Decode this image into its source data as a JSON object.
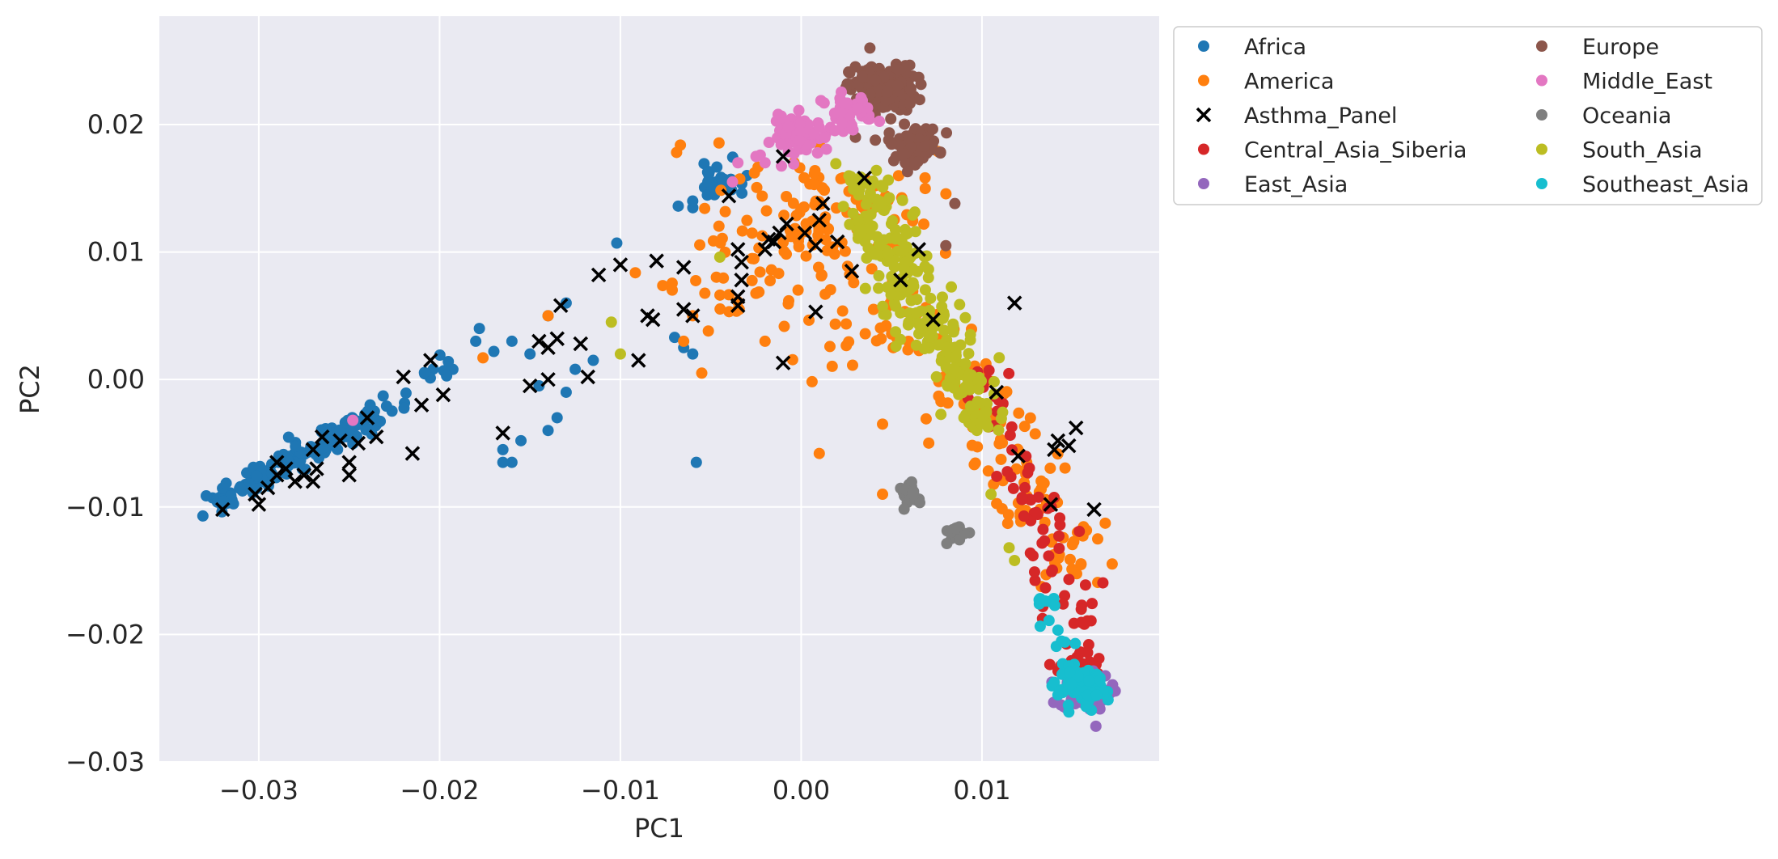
{
  "chart_data": {
    "type": "scatter",
    "title": "",
    "xlabel": "PC1",
    "ylabel": "PC2",
    "xlim": [
      -0.0355,
      0.0198
    ],
    "ylim": [
      -0.03,
      0.0285
    ],
    "xticks": [
      -0.03,
      -0.02,
      -0.01,
      0.0,
      0.01
    ],
    "xtick_labels": [
      "−0.03",
      "−0.02",
      "−0.01",
      "0.00",
      "0.01"
    ],
    "yticks": [
      0.02,
      0.01,
      0.0,
      -0.01,
      -0.02,
      -0.03
    ],
    "ytick_labels": [
      "0.02",
      "0.01",
      "0.00",
      "−0.01",
      "−0.02",
      "−0.03"
    ],
    "grid": true,
    "legend_position": "outside-top-right",
    "legend_columns": 2,
    "series": [
      {
        "name": "Africa",
        "marker": "circle",
        "color": "#1f77b4",
        "clusters": [
          {
            "from": [
              -0.0325,
              -0.0095
            ],
            "to": [
              -0.0235,
              -0.003
            ],
            "spread": 0.0005,
            "count": 160
          },
          {
            "from": [
              -0.0235,
              -0.003
            ],
            "to": [
              -0.0195,
              0.0015
            ],
            "spread": 0.0004,
            "count": 18
          },
          {
            "center": [
              -0.0045,
              0.0155
            ],
            "spread": 0.0007,
            "count": 30
          }
        ],
        "points": [
          [
            -0.0178,
            0.004
          ],
          [
            -0.018,
            0.003
          ],
          [
            -0.016,
            0.003
          ],
          [
            -0.015,
            0.002
          ],
          [
            -0.017,
            0.0022
          ],
          [
            -0.013,
            0.006
          ],
          [
            -0.014,
            0.005
          ],
          [
            -0.0115,
            0.0015
          ],
          [
            -0.0125,
            0.0008
          ],
          [
            -0.013,
            -0.001
          ],
          [
            -0.0145,
            -0.0005
          ],
          [
            -0.0135,
            -0.003
          ],
          [
            -0.014,
            -0.004
          ],
          [
            -0.0165,
            -0.0055
          ],
          [
            -0.0155,
            -0.0048
          ],
          [
            -0.016,
            -0.0065
          ],
          [
            -0.0165,
            -0.0065
          ],
          [
            -0.0058,
            -0.0065
          ],
          [
            -0.0102,
            0.0107
          ],
          [
            -0.007,
            0.0033
          ],
          [
            -0.0065,
            0.0025
          ],
          [
            -0.006,
            0.002
          ],
          [
            -0.0068,
            0.0136
          ],
          [
            -0.006,
            0.014
          ],
          [
            -0.003,
            0.016
          ]
        ]
      },
      {
        "name": "America",
        "marker": "circle",
        "color": "#ff7f0e",
        "clusters": [
          {
            "center": [
              0.001,
              0.013
            ],
            "spread": 0.003,
            "count": 110
          },
          {
            "center": [
              -0.003,
              0.008
            ],
            "spread": 0.0028,
            "count": 45
          },
          {
            "from": [
              0.007,
              0.005
            ],
            "to": [
              0.015,
              -0.015
            ],
            "spread": 0.0012,
            "count": 120
          },
          {
            "center": [
              0.004,
              0.003
            ],
            "spread": 0.002,
            "count": 25
          }
        ],
        "points": [
          [
            -0.014,
            0.005
          ],
          [
            -0.006,
            0.005
          ],
          [
            -0.0065,
            0.003
          ],
          [
            -0.0055,
            0.0005
          ],
          [
            -0.002,
            0.003
          ],
          [
            0.001,
            -0.0058
          ],
          [
            0.0045,
            -0.0035
          ],
          [
            0.0045,
            -0.009
          ],
          [
            -0.0176,
            0.0017
          ],
          [
            0.004,
            0.0055
          ]
        ]
      },
      {
        "name": "Asthma_Panel",
        "marker": "x",
        "color": "#000000",
        "points": [
          [
            -0.032,
            -0.0102
          ],
          [
            -0.03,
            -0.0098
          ],
          [
            -0.0302,
            -0.009
          ],
          [
            -0.0295,
            -0.0085
          ],
          [
            -0.029,
            -0.0075
          ],
          [
            -0.0285,
            -0.007
          ],
          [
            -0.028,
            -0.008
          ],
          [
            -0.0275,
            -0.0075
          ],
          [
            -0.027,
            -0.008
          ],
          [
            -0.0268,
            -0.007
          ],
          [
            -0.027,
            -0.0055
          ],
          [
            -0.0265,
            -0.0045
          ],
          [
            -0.029,
            -0.0065
          ],
          [
            -0.0255,
            -0.0048
          ],
          [
            -0.025,
            -0.0065
          ],
          [
            -0.0245,
            -0.005
          ],
          [
            -0.025,
            -0.0075
          ],
          [
            -0.024,
            -0.003
          ],
          [
            -0.0235,
            -0.0045
          ],
          [
            -0.022,
            0.0002
          ],
          [
            -0.021,
            -0.002
          ],
          [
            -0.0205,
            0.0015
          ],
          [
            -0.0198,
            -0.0012
          ],
          [
            -0.0215,
            -0.0058
          ],
          [
            -0.0165,
            -0.0042
          ],
          [
            -0.015,
            -0.0005
          ],
          [
            -0.0145,
            0.003
          ],
          [
            -0.014,
            0.0025
          ],
          [
            -0.0135,
            0.0032
          ],
          [
            -0.014,
            0.0
          ],
          [
            -0.0133,
            0.0058
          ],
          [
            -0.0122,
            0.0028
          ],
          [
            -0.0118,
            0.0002
          ],
          [
            -0.0112,
            0.0082
          ],
          [
            -0.01,
            0.009
          ],
          [
            -0.009,
            0.0015
          ],
          [
            -0.0085,
            0.005
          ],
          [
            -0.0082,
            0.0047
          ],
          [
            -0.008,
            0.0093
          ],
          [
            -0.0065,
            0.0088
          ],
          [
            -0.0065,
            0.0055
          ],
          [
            -0.006,
            0.005
          ],
          [
            -0.004,
            0.0144
          ],
          [
            -0.0035,
            0.0102
          ],
          [
            -0.0033,
            0.0092
          ],
          [
            -0.0033,
            0.0078
          ],
          [
            -0.0035,
            0.0065
          ],
          [
            -0.0035,
            0.0058
          ],
          [
            -0.002,
            0.0102
          ],
          [
            -0.0018,
            0.011
          ],
          [
            -0.0015,
            0.0108
          ],
          [
            -0.0012,
            0.0115
          ],
          [
            -0.0008,
            0.0122
          ],
          [
            -0.001,
            0.0175
          ],
          [
            -0.001,
            0.0013
          ],
          [
            0.0002,
            0.0115
          ],
          [
            0.0008,
            0.0105
          ],
          [
            0.001,
            0.0125
          ],
          [
            0.0012,
            0.0138
          ],
          [
            0.0008,
            0.0053
          ],
          [
            0.002,
            0.0108
          ],
          [
            0.0028,
            0.0085
          ],
          [
            0.0035,
            0.0158
          ],
          [
            0.0055,
            0.0078
          ],
          [
            0.0065,
            0.0102
          ],
          [
            0.0073,
            0.0047
          ],
          [
            0.0108,
            -0.001
          ],
          [
            0.0118,
            0.006
          ],
          [
            0.012,
            -0.006
          ],
          [
            0.0138,
            -0.0098
          ],
          [
            0.014,
            -0.0055
          ],
          [
            0.0142,
            -0.0048
          ],
          [
            0.0148,
            -0.0052
          ],
          [
            0.0152,
            -0.0038
          ],
          [
            0.0162,
            -0.0102
          ]
        ]
      },
      {
        "name": "Central_Asia_Siberia",
        "marker": "circle",
        "color": "#d62728",
        "clusters": [
          {
            "from": [
              0.01,
              0.001
            ],
            "to": [
              0.0155,
              -0.02
            ],
            "spread": 0.0008,
            "count": 70
          },
          {
            "center": [
              0.0155,
              -0.0225
            ],
            "spread": 0.0006,
            "count": 25
          }
        ],
        "points": []
      },
      {
        "name": "East_Asia",
        "marker": "circle",
        "color": "#9467bd",
        "clusters": [
          {
            "center": [
              0.0157,
              -0.0245
            ],
            "spread": 0.0007,
            "count": 70
          }
        ],
        "points": [
          [
            0.0163,
            -0.0272
          ],
          [
            0.0172,
            -0.0245
          ],
          [
            0.0145,
            -0.023
          ]
        ]
      },
      {
        "name": "Europe",
        "marker": "circle",
        "color": "#8c564b",
        "clusters": [
          {
            "center": [
              0.0045,
              0.0228
            ],
            "spread": 0.0009,
            "count": 160
          },
          {
            "center": [
              0.0062,
              0.0185
            ],
            "spread": 0.0007,
            "count": 80
          }
        ],
        "points": [
          [
            0.0038,
            0.026
          ],
          [
            0.0085,
            0.0138
          ],
          [
            0.008,
            0.0105
          ],
          [
            0.003,
            0.019
          ]
        ]
      },
      {
        "name": "Middle_East",
        "marker": "circle",
        "color": "#e377c2",
        "clusters": [
          {
            "center": [
              0.0,
              0.019
            ],
            "spread": 0.0008,
            "count": 70
          },
          {
            "center": [
              0.0025,
              0.021
            ],
            "spread": 0.0007,
            "count": 40
          }
        ],
        "points": [
          [
            -0.0248,
            -0.0032
          ],
          [
            -0.0035,
            0.017
          ],
          [
            -0.0038,
            0.0155
          ],
          [
            -0.0025,
            0.0175
          ],
          [
            -0.002,
            0.017
          ]
        ]
      },
      {
        "name": "Oceania",
        "marker": "circle",
        "color": "#7f7f7f",
        "clusters": [
          {
            "center": [
              0.0062,
              -0.009
            ],
            "spread": 0.0004,
            "count": 18
          },
          {
            "center": [
              0.0085,
              -0.012
            ],
            "spread": 0.0004,
            "count": 14
          }
        ],
        "points": []
      },
      {
        "name": "South_Asia",
        "marker": "circle",
        "color": "#bcbd22",
        "clusters": [
          {
            "from": [
              0.003,
              0.0155
            ],
            "to": [
              0.009,
              -0.001
            ],
            "spread": 0.0009,
            "count": 230
          },
          {
            "center": [
              0.0102,
              -0.003
            ],
            "spread": 0.0006,
            "count": 25
          }
        ],
        "points": [
          [
            -0.0105,
            0.0045
          ],
          [
            -0.01,
            0.002
          ],
          [
            -0.0045,
            0.0096
          ],
          [
            0.0105,
            -0.009
          ],
          [
            0.0115,
            -0.0132
          ],
          [
            0.0118,
            -0.0142
          ],
          [
            0.009,
            -0.003
          ]
        ]
      },
      {
        "name": "Southeast_Asia",
        "marker": "circle",
        "color": "#17becf",
        "clusters": [
          {
            "center": [
              0.0155,
              -0.0243
            ],
            "spread": 0.0007,
            "count": 95
          },
          {
            "from": [
              0.0135,
              -0.0168
            ],
            "to": [
              0.0148,
              -0.0215
            ],
            "spread": 0.0004,
            "count": 14
          }
        ],
        "points": []
      }
    ]
  }
}
